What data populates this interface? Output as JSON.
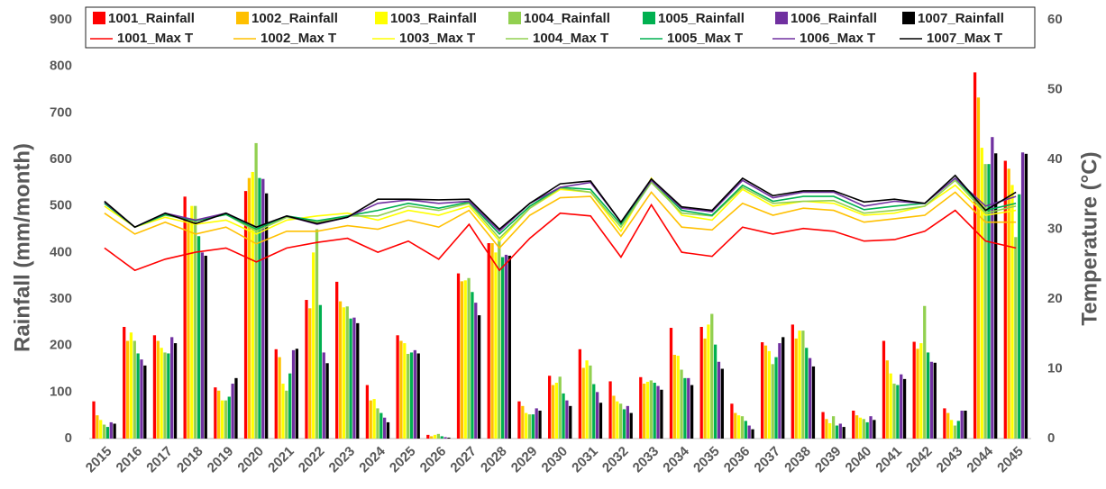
{
  "chart_data": {
    "type": "bar",
    "categories": [
      "2015",
      "2016",
      "2017",
      "2018",
      "2019",
      "2020",
      "2021",
      "2022",
      "2023",
      "2024",
      "2025",
      "2026",
      "2027",
      "2028",
      "2029",
      "2030",
      "2031",
      "2032",
      "2033",
      "2034",
      "2035",
      "2036",
      "2037",
      "2038",
      "2039",
      "2040",
      "2041",
      "2042",
      "2043",
      "2044",
      "2045"
    ],
    "y_label": "Rainfall (mm/month)",
    "y2_label": "Temperature (°C)",
    "ylim": [
      0,
      900
    ],
    "yticks": [
      0,
      100,
      200,
      300,
      400,
      500,
      600,
      700,
      800,
      900
    ],
    "y2lim": [
      0,
      60
    ],
    "y2ticks": [
      0,
      10,
      20,
      30,
      40,
      50,
      60
    ],
    "series": [
      {
        "name": "1001_Rainfall",
        "type": "bar",
        "color": "#ff0000",
        "values": [
          80,
          240,
          222,
          520,
          110,
          532,
          192,
          298,
          337,
          115,
          222,
          8,
          355,
          420,
          80,
          135,
          192,
          123,
          132,
          238,
          240,
          75,
          207,
          245,
          57,
          60,
          210,
          208,
          65,
          787,
          597
        ]
      },
      {
        "name": "1002_Rainfall",
        "type": "bar",
        "color": "#ffc000",
        "values": [
          50,
          210,
          210,
          465,
          103,
          560,
          175,
          280,
          295,
          82,
          210,
          5,
          338,
          420,
          70,
          115,
          152,
          92,
          118,
          180,
          215,
          55,
          200,
          215,
          42,
          50,
          168,
          193,
          55,
          733,
          580
        ]
      },
      {
        "name": "1003_Rainfall",
        "type": "bar",
        "color": "#ffff00",
        "values": [
          40,
          228,
          195,
          500,
          82,
          573,
          118,
          400,
          282,
          85,
          205,
          8,
          340,
          400,
          55,
          120,
          168,
          80,
          122,
          178,
          245,
          50,
          188,
          232,
          33,
          45,
          140,
          205,
          40,
          625,
          545
        ]
      },
      {
        "name": "1004_Rainfall",
        "type": "bar",
        "color": "#92d050",
        "values": [
          30,
          210,
          185,
          500,
          82,
          635,
          103,
          450,
          284,
          65,
          182,
          10,
          345,
          425,
          52,
          133,
          157,
          75,
          125,
          148,
          268,
          48,
          160,
          232,
          48,
          42,
          118,
          285,
          28,
          590,
          433
        ]
      },
      {
        "name": "1005_Rainfall",
        "type": "bar",
        "color": "#00b050",
        "values": [
          25,
          183,
          183,
          435,
          90,
          560,
          140,
          287,
          258,
          55,
          185,
          5,
          315,
          390,
          52,
          97,
          117,
          63,
          120,
          130,
          202,
          38,
          175,
          195,
          28,
          35,
          115,
          185,
          38,
          590,
          525
        ]
      },
      {
        "name": "1006_Rainfall",
        "type": "bar",
        "color": "#7030a0",
        "values": [
          35,
          170,
          218,
          400,
          118,
          558,
          190,
          185,
          260,
          45,
          190,
          3,
          292,
          395,
          65,
          82,
          100,
          70,
          113,
          130,
          165,
          28,
          205,
          173,
          32,
          48,
          138,
          165,
          60,
          648,
          615
        ]
      },
      {
        "name": "1007_Rainfall",
        "type": "bar",
        "color": "#000000",
        "values": [
          32,
          157,
          205,
          393,
          130,
          527,
          193,
          162,
          248,
          35,
          183,
          2,
          265,
          393,
          60,
          70,
          77,
          55,
          105,
          115,
          150,
          20,
          218,
          155,
          25,
          40,
          128,
          163,
          60,
          613,
          612
        ]
      },
      {
        "name": "1001_Max T",
        "type": "line",
        "axis": "y2",
        "color": "#ff0000",
        "values": [
          27.3,
          24.1,
          25.7,
          26.7,
          27.3,
          25.3,
          27.3,
          28.1,
          28.7,
          26.7,
          28.3,
          25.7,
          30.7,
          24.1,
          28.7,
          32.3,
          31.9,
          26.0,
          33.5,
          26.7,
          26.1,
          30.3,
          29.3,
          30.1,
          29.7,
          28.3,
          28.5,
          29.7,
          32.7,
          28.3,
          27.3
        ]
      },
      {
        "name": "1002_Max T",
        "type": "line",
        "axis": "y2",
        "color": "#ffc000",
        "values": [
          32.3,
          29.3,
          31.0,
          29.3,
          30.3,
          27.9,
          29.7,
          29.7,
          30.5,
          30.0,
          31.3,
          30.3,
          32.7,
          27.3,
          32.0,
          34.5,
          34.7,
          29.0,
          35.3,
          30.3,
          29.9,
          33.7,
          32.0,
          33.0,
          32.7,
          31.0,
          31.5,
          32.0,
          35.3,
          31.0,
          31.0
        ]
      },
      {
        "name": "1003_Max T",
        "type": "line",
        "axis": "y2",
        "color": "#ffff00",
        "values": [
          33.3,
          30.3,
          31.7,
          30.7,
          31.3,
          29.3,
          31.3,
          31.9,
          32.3,
          31.3,
          32.7,
          32.0,
          33.3,
          28.3,
          33.0,
          35.7,
          35.3,
          29.7,
          37.3,
          32.0,
          31.3,
          35.7,
          33.3,
          34.0,
          33.7,
          32.0,
          32.3,
          33.3,
          36.3,
          32.0,
          32.7
        ]
      },
      {
        "name": "1004_Max T",
        "type": "line",
        "axis": "y2",
        "color": "#92d050",
        "values": [
          33.7,
          30.3,
          32.0,
          31.2,
          32.1,
          29.7,
          31.7,
          31.0,
          31.9,
          31.9,
          33.3,
          32.7,
          33.7,
          28.7,
          33.0,
          35.9,
          35.3,
          30.3,
          36.7,
          32.3,
          31.9,
          36.0,
          33.7,
          34.0,
          34.1,
          32.3,
          32.7,
          33.3,
          37.0,
          32.3,
          33.3
        ]
      },
      {
        "name": "1005_Max T",
        "type": "line",
        "axis": "y2",
        "color": "#00b050",
        "values": [
          33.7,
          30.3,
          32.1,
          31.2,
          32.1,
          30.0,
          31.9,
          31.2,
          31.9,
          32.7,
          33.7,
          33.0,
          33.9,
          29.3,
          33.3,
          36.0,
          35.7,
          30.7,
          37.0,
          32.7,
          32.0,
          36.3,
          34.0,
          34.7,
          34.7,
          32.8,
          33.3,
          33.7,
          37.3,
          32.7,
          33.7
        ]
      },
      {
        "name": "1006_Max T",
        "type": "line",
        "axis": "y2",
        "color": "#7030a0",
        "values": [
          33.9,
          30.3,
          32.3,
          31.3,
          32.3,
          30.3,
          31.9,
          30.7,
          31.7,
          33.7,
          34.2,
          33.7,
          34.0,
          29.7,
          33.7,
          36.0,
          36.7,
          31.0,
          37.0,
          33.0,
          32.5,
          37.0,
          34.5,
          35.3,
          35.3,
          33.3,
          34.0,
          33.7,
          37.3,
          33.3,
          34.7
        ]
      },
      {
        "name": "1007_Max T",
        "type": "line",
        "axis": "y2",
        "color": "#000000",
        "values": [
          34.0,
          30.3,
          32.3,
          30.8,
          32.3,
          30.3,
          31.9,
          30.8,
          31.7,
          34.3,
          34.3,
          34.2,
          34.3,
          30.0,
          33.7,
          36.5,
          36.9,
          31.0,
          37.2,
          33.2,
          32.7,
          37.3,
          34.8,
          35.5,
          35.5,
          33.9,
          34.3,
          33.7,
          37.7,
          32.7,
          35.3
        ]
      }
    ]
  }
}
